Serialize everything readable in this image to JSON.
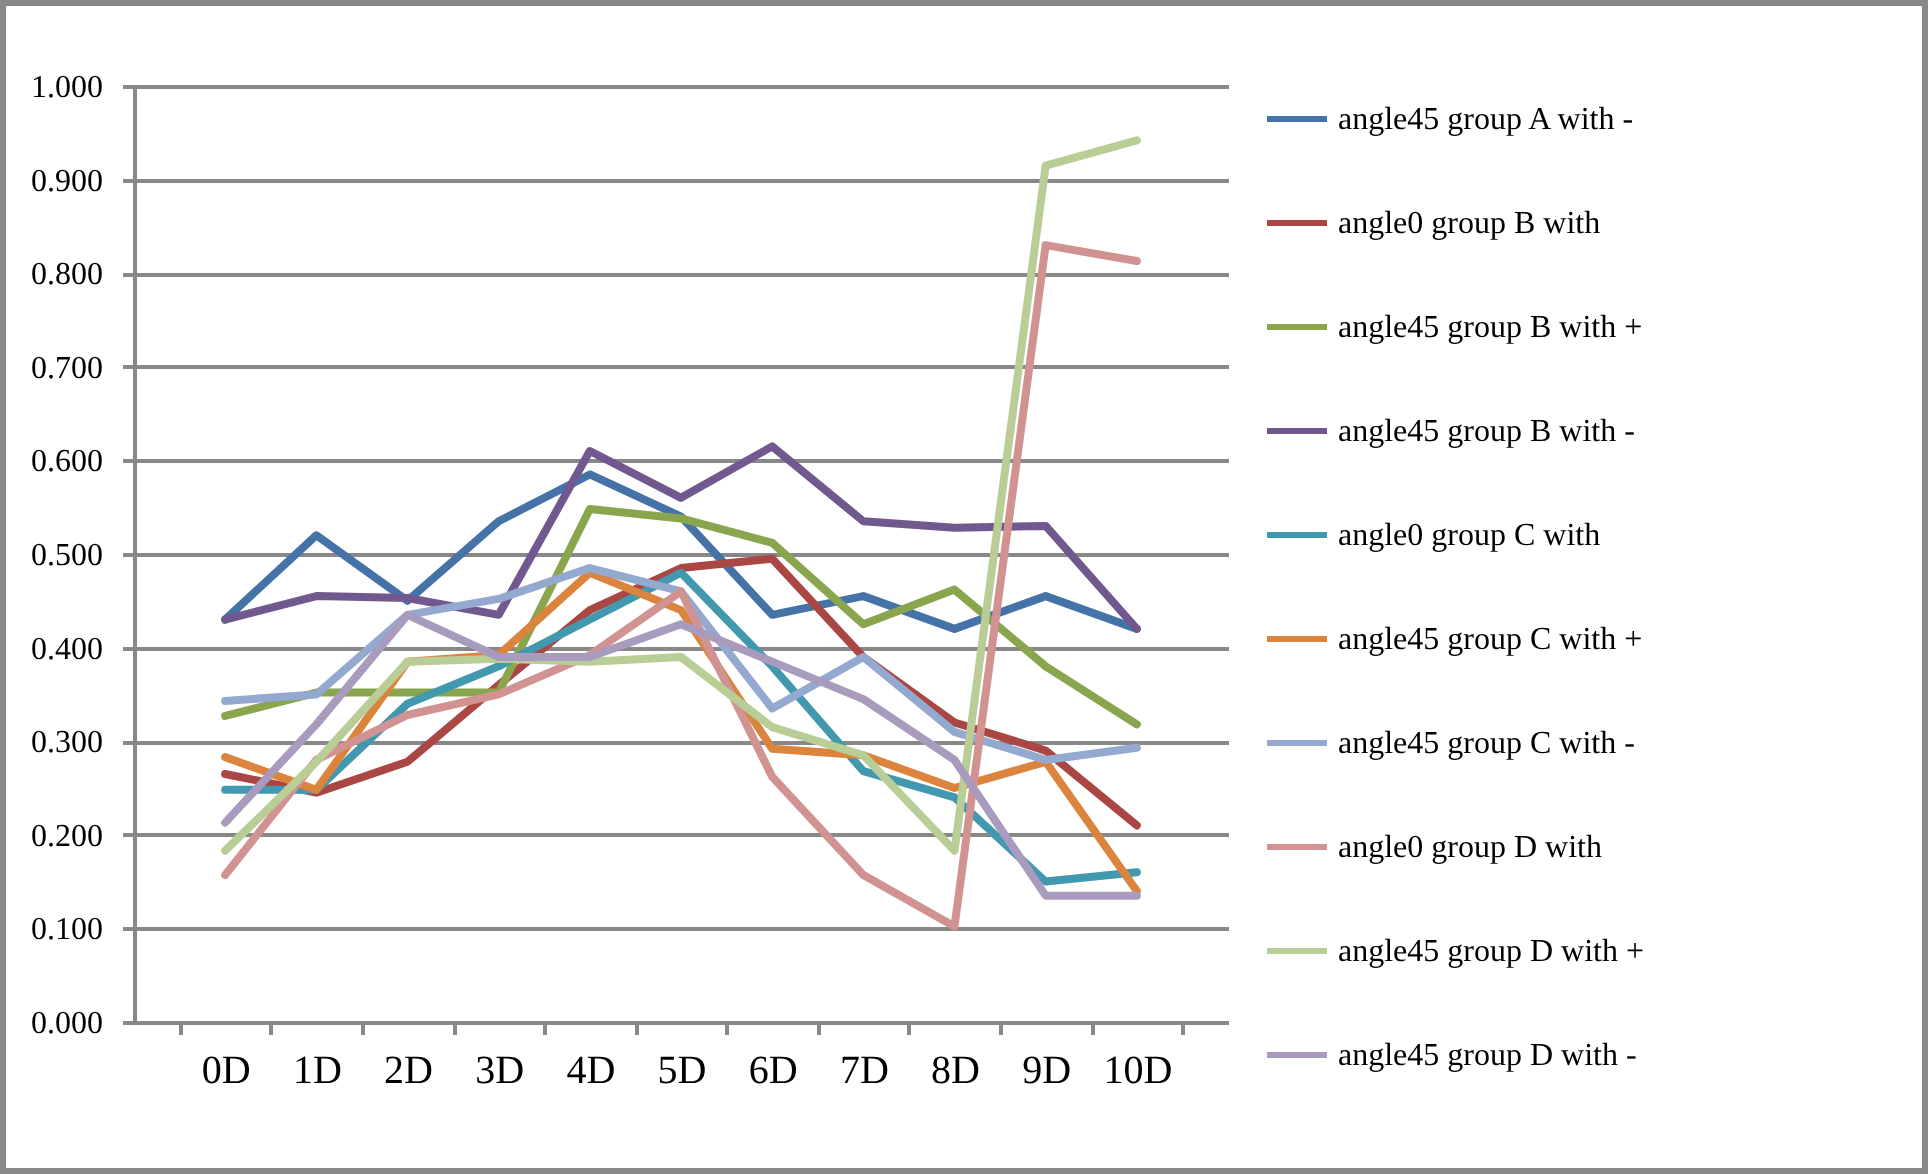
{
  "chart_data": {
    "type": "line",
    "categories": [
      "0D",
      "1D",
      "2D",
      "3D",
      "4D",
      "5D",
      "6D",
      "7D",
      "8D",
      "9D",
      "10D"
    ],
    "ylim": [
      0,
      1
    ],
    "yticks": [
      {
        "value": 0,
        "label": "0.000"
      },
      {
        "value": 0.1,
        "label": "0.100"
      },
      {
        "value": 0.2,
        "label": "0.200"
      },
      {
        "value": 0.3,
        "label": "0.300"
      },
      {
        "value": 0.4,
        "label": "0.400"
      },
      {
        "value": 0.5,
        "label": "0.500"
      },
      {
        "value": 0.6,
        "label": "0.600"
      },
      {
        "value": 0.7,
        "label": "0.700"
      },
      {
        "value": 0.8,
        "label": "0.800"
      },
      {
        "value": 0.9,
        "label": "0.900"
      },
      {
        "value": 1,
        "label": "1.000"
      }
    ],
    "grid": "y",
    "legend": "right",
    "marker": "none",
    "line_style": "solid",
    "series": [
      {
        "name": "angle45 group A with -",
        "color": "#4572a7",
        "values": [
          0.43,
          0.52,
          0.45,
          0.535,
          0.585,
          0.54,
          0.435,
          0.455,
          0.42,
          0.455,
          0.42
        ]
      },
      {
        "name": "angle0 group B with",
        "color": "#aa4643",
        "values": [
          0.265,
          0.245,
          0.278,
          0.36,
          0.44,
          0.485,
          0.495,
          0.39,
          0.32,
          0.29,
          0.21
        ]
      },
      {
        "name": "angle45 group B with +",
        "color": "#89a54e",
        "values": [
          0.327,
          0.352,
          0.352,
          0.352,
          0.548,
          0.538,
          0.512,
          0.425,
          0.462,
          0.38,
          0.318
        ]
      },
      {
        "name": "angle45 group B with -",
        "color": "#71588f",
        "values": [
          0.43,
          0.455,
          0.453,
          0.435,
          0.61,
          0.56,
          0.615,
          0.535,
          0.528,
          0.53,
          0.42
        ]
      },
      {
        "name": "angle0 group C with",
        "color": "#4198af",
        "values": [
          0.248,
          0.248,
          0.34,
          0.38,
          0.43,
          0.48,
          0.38,
          0.268,
          0.24,
          0.15,
          0.16
        ]
      },
      {
        "name": "angle45 group C with +",
        "color": "#db843d",
        "values": [
          0.283,
          0.248,
          0.385,
          0.392,
          0.48,
          0.44,
          0.292,
          0.285,
          0.25,
          0.278,
          0.14
        ]
      },
      {
        "name": "angle45 group C with -",
        "color": "#93a9cf",
        "values": [
          0.343,
          0.35,
          0.435,
          0.452,
          0.485,
          0.46,
          0.335,
          0.39,
          0.31,
          0.28,
          0.293
        ]
      },
      {
        "name": "angle0 group  D with",
        "color": "#d19392",
        "values": [
          0.157,
          0.28,
          0.328,
          0.35,
          0.392,
          0.46,
          0.262,
          0.157,
          0.102,
          0.83,
          0.813
        ]
      },
      {
        "name": "  angle45 group  D with +",
        "color": "#b9cd96",
        "values": [
          0.183,
          0.278,
          0.385,
          0.388,
          0.385,
          0.39,
          0.315,
          0.285,
          0.183,
          0.915,
          0.942
        ]
      },
      {
        "name": "angle45 group  D with -",
        "color": "#a99bbd",
        "values": [
          0.213,
          0.318,
          0.435,
          0.39,
          0.39,
          0.425,
          0.385,
          0.345,
          0.28,
          0.135,
          0.135
        ]
      }
    ]
  }
}
